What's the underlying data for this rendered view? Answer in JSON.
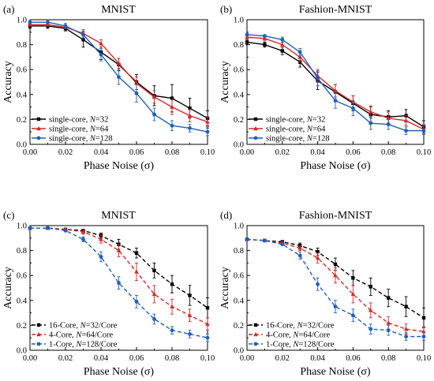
{
  "chart_data": [
    {
      "panel": "(a)",
      "type": "line",
      "title": "MNIST",
      "xlabel": "Phase Noise (σ)",
      "ylabel": "Accuracy",
      "xlim": [
        0,
        0.1
      ],
      "ylim": [
        0,
        1.0
      ],
      "xticks": [
        "0.00",
        "0.02",
        "0.04",
        "0.06",
        "0.08",
        "0.10"
      ],
      "yticks": [
        "0.0",
        "0.2",
        "0.4",
        "0.6",
        "0.8",
        "1.0"
      ],
      "legend_position": "bottom-left",
      "x": [
        0.0,
        0.01,
        0.02,
        0.03,
        0.04,
        0.05,
        0.06,
        0.07,
        0.08,
        0.09,
        0.1
      ],
      "series": [
        {
          "prefix": "single-core, ",
          "var": "N",
          "eq": "=32",
          "color": "#000000",
          "dash": "solid",
          "marker": "square",
          "values": [
            0.95,
            0.95,
            0.93,
            0.84,
            0.74,
            0.64,
            0.5,
            0.39,
            0.37,
            0.29,
            0.21
          ],
          "err": [
            0.02,
            0.02,
            0.02,
            0.06,
            0.06,
            0.05,
            0.06,
            0.08,
            0.11,
            0.08,
            0.06
          ]
        },
        {
          "prefix": "single-core, ",
          "var": "N",
          "eq": "=64",
          "color": "#d62728",
          "dash": "solid",
          "marker": "triangle",
          "values": [
            0.96,
            0.96,
            0.94,
            0.89,
            0.81,
            0.65,
            0.49,
            0.38,
            0.3,
            0.23,
            0.18
          ],
          "err": [
            0.01,
            0.01,
            0.01,
            0.03,
            0.03,
            0.04,
            0.05,
            0.05,
            0.06,
            0.05,
            0.04
          ]
        },
        {
          "prefix": "single-core, ",
          "var": "N",
          "eq": "=128",
          "color": "#1f5fbf",
          "dash": "solid",
          "marker": "circle",
          "values": [
            0.98,
            0.98,
            0.95,
            0.88,
            0.72,
            0.54,
            0.41,
            0.24,
            0.15,
            0.13,
            0.1
          ],
          "err": [
            0.01,
            0.01,
            0.02,
            0.03,
            0.05,
            0.06,
            0.07,
            0.05,
            0.04,
            0.03,
            0.03
          ]
        }
      ]
    },
    {
      "panel": "(b)",
      "type": "line",
      "title": "Fashion-MNIST",
      "xlabel": "Phase Noise (σ)",
      "ylabel": "Accuracy",
      "xlim": [
        0,
        0.1
      ],
      "ylim": [
        0,
        1.0
      ],
      "xticks": [
        "0.00",
        "0.02",
        "0.04",
        "0.06",
        "0.08",
        "0.10"
      ],
      "yticks": [
        "0.0",
        "0.2",
        "0.4",
        "0.6",
        "0.8",
        "1.0"
      ],
      "legend_position": "bottom-left",
      "x": [
        0.0,
        0.01,
        0.02,
        0.03,
        0.04,
        0.05,
        0.06,
        0.07,
        0.08,
        0.09,
        0.1
      ],
      "series": [
        {
          "prefix": "single-core, ",
          "var": "N",
          "eq": "=32",
          "color": "#000000",
          "dash": "solid",
          "marker": "square",
          "values": [
            0.82,
            0.8,
            0.75,
            0.66,
            0.51,
            0.42,
            0.33,
            0.24,
            0.22,
            0.23,
            0.14
          ],
          "err": [
            0.02,
            0.02,
            0.03,
            0.04,
            0.07,
            0.06,
            0.06,
            0.06,
            0.05,
            0.05,
            0.05
          ]
        },
        {
          "prefix": "single-core, ",
          "var": "N",
          "eq": "=64",
          "color": "#d62728",
          "dash": "solid",
          "marker": "triangle",
          "values": [
            0.86,
            0.85,
            0.8,
            0.7,
            0.55,
            0.43,
            0.34,
            0.26,
            0.21,
            0.19,
            0.12
          ],
          "err": [
            0.02,
            0.02,
            0.02,
            0.04,
            0.05,
            0.05,
            0.05,
            0.05,
            0.05,
            0.04,
            0.04
          ]
        },
        {
          "prefix": "single-core, ",
          "var": "N",
          "eq": "=128",
          "color": "#1f5fbf",
          "dash": "solid",
          "marker": "circle",
          "values": [
            0.88,
            0.87,
            0.84,
            0.74,
            0.53,
            0.35,
            0.29,
            0.17,
            0.16,
            0.11,
            0.11
          ],
          "err": [
            0.01,
            0.01,
            0.02,
            0.03,
            0.06,
            0.06,
            0.06,
            0.05,
            0.04,
            0.03,
            0.03
          ]
        }
      ]
    },
    {
      "panel": "(c)",
      "type": "line",
      "title": "MNIST",
      "xlabel": "Phase Noise (σ)",
      "ylabel": "Accuracy",
      "xlim": [
        0,
        0.1
      ],
      "ylim": [
        0,
        1.0
      ],
      "xticks": [
        "0.00",
        "0.02",
        "0.04",
        "0.06",
        "0.08",
        "0.10"
      ],
      "yticks": [
        "0.0",
        "0.2",
        "0.4",
        "0.6",
        "0.8",
        "1.0"
      ],
      "legend_position": "bottom-left",
      "x": [
        0.0,
        0.01,
        0.02,
        0.03,
        0.04,
        0.05,
        0.06,
        0.07,
        0.08,
        0.09,
        0.1
      ],
      "series": [
        {
          "prefix": "16-Core, ",
          "var": "N",
          "eq": "=32/Core",
          "color": "#000000",
          "dash": "dashed",
          "marker": "square",
          "values": [
            0.98,
            0.98,
            0.97,
            0.96,
            0.92,
            0.85,
            0.78,
            0.64,
            0.53,
            0.44,
            0.34
          ],
          "err": [
            0.01,
            0.01,
            0.01,
            0.01,
            0.02,
            0.04,
            0.04,
            0.06,
            0.07,
            0.08,
            0.08
          ]
        },
        {
          "prefix": "4-Core, ",
          "var": "N",
          "eq": "=64/Core",
          "color": "#d62728",
          "dash": "dashed",
          "marker": "triangle",
          "values": [
            0.98,
            0.98,
            0.97,
            0.95,
            0.89,
            0.8,
            0.63,
            0.45,
            0.35,
            0.28,
            0.21
          ],
          "err": [
            0.01,
            0.01,
            0.01,
            0.02,
            0.03,
            0.05,
            0.07,
            0.07,
            0.06,
            0.05,
            0.05
          ]
        },
        {
          "prefix": "1-Core, ",
          "var": "N",
          "eq": "=128/Core",
          "color": "#1f5fbf",
          "dash": "dashed",
          "marker": "circle",
          "values": [
            0.98,
            0.98,
            0.96,
            0.89,
            0.75,
            0.54,
            0.39,
            0.25,
            0.16,
            0.13,
            0.1
          ],
          "err": [
            0.01,
            0.01,
            0.01,
            0.02,
            0.04,
            0.05,
            0.05,
            0.04,
            0.03,
            0.03,
            0.03
          ]
        }
      ]
    },
    {
      "panel": "(d)",
      "type": "line",
      "title": "Fashion-MNIST",
      "xlabel": "Phase Noise (σ)",
      "ylabel": "Accuracy",
      "xlim": [
        0,
        0.1
      ],
      "ylim": [
        0,
        1.0
      ],
      "xticks": [
        "0.00",
        "0.02",
        "0.04",
        "0.06",
        "0.08",
        "0.10"
      ],
      "yticks": [
        "0.0",
        "0.2",
        "0.4",
        "0.6",
        "0.8",
        "1.0"
      ],
      "legend_position": "bottom-left",
      "x": [
        0.0,
        0.01,
        0.02,
        0.03,
        0.04,
        0.05,
        0.06,
        0.07,
        0.08,
        0.09,
        0.1
      ],
      "series": [
        {
          "prefix": "16-Core, ",
          "var": "N",
          "eq": "=32/Core",
          "color": "#000000",
          "dash": "dashed",
          "marker": "square",
          "values": [
            0.89,
            0.88,
            0.87,
            0.84,
            0.79,
            0.69,
            0.58,
            0.51,
            0.42,
            0.35,
            0.26
          ],
          "err": [
            0.01,
            0.01,
            0.01,
            0.02,
            0.03,
            0.05,
            0.06,
            0.07,
            0.07,
            0.08,
            0.08
          ]
        },
        {
          "prefix": "4-Core, ",
          "var": "N",
          "eq": "=64/Core",
          "color": "#d62728",
          "dash": "dashed",
          "marker": "triangle",
          "values": [
            0.89,
            0.88,
            0.86,
            0.82,
            0.74,
            0.6,
            0.45,
            0.32,
            0.22,
            0.17,
            0.15
          ],
          "err": [
            0.01,
            0.01,
            0.01,
            0.02,
            0.04,
            0.06,
            0.07,
            0.06,
            0.05,
            0.04,
            0.04
          ]
        },
        {
          "prefix": "1-Core, ",
          "var": "N",
          "eq": "=128/Core",
          "color": "#1f5fbf",
          "dash": "dashed",
          "marker": "circle",
          "values": [
            0.89,
            0.88,
            0.85,
            0.76,
            0.53,
            0.35,
            0.28,
            0.17,
            0.16,
            0.11,
            0.11
          ],
          "err": [
            0.01,
            0.01,
            0.01,
            0.03,
            0.05,
            0.05,
            0.05,
            0.04,
            0.04,
            0.03,
            0.03
          ]
        }
      ]
    }
  ]
}
